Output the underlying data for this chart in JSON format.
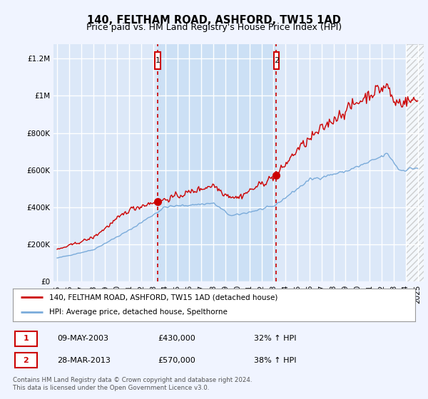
{
  "title": "140, FELTHAM ROAD, ASHFORD, TW15 1AD",
  "subtitle": "Price paid vs. HM Land Registry's House Price Index (HPI)",
  "ylabel_ticks": [
    "£0",
    "£200K",
    "£400K",
    "£600K",
    "£800K",
    "£1M",
    "£1.2M"
  ],
  "ytick_values": [
    0,
    200000,
    400000,
    600000,
    800000,
    1000000,
    1200000
  ],
  "ylim": [
    0,
    1280000
  ],
  "xlim_start": 1994.7,
  "xlim_end": 2025.5,
  "xticks": [
    1995,
    1996,
    1997,
    1998,
    1999,
    2000,
    2001,
    2002,
    2003,
    2004,
    2005,
    2006,
    2007,
    2008,
    2009,
    2010,
    2011,
    2012,
    2013,
    2014,
    2015,
    2016,
    2017,
    2018,
    2019,
    2020,
    2021,
    2022,
    2023,
    2024,
    2025
  ],
  "background_color": "#f0f4ff",
  "plot_bg_color": "#dce8f8",
  "highlight_bg_color": "#cce0f5",
  "grid_color": "#ffffff",
  "red_line_color": "#cc0000",
  "blue_line_color": "#7aabda",
  "sale1_x": 2003.36,
  "sale1_y": 430000,
  "sale2_x": 2013.24,
  "sale2_y": 570000,
  "vline_color": "#cc0000",
  "legend_label_red": "140, FELTHAM ROAD, ASHFORD, TW15 1AD (detached house)",
  "legend_label_blue": "HPI: Average price, detached house, Spelthorne",
  "table_row1": [
    "1",
    "09-MAY-2003",
    "£430,000",
    "32% ↑ HPI"
  ],
  "table_row2": [
    "2",
    "28-MAR-2013",
    "£570,000",
    "38% ↑ HPI"
  ],
  "footer": "Contains HM Land Registry data © Crown copyright and database right 2024.\nThis data is licensed under the Open Government Licence v3.0.",
  "title_fontsize": 10.5,
  "subtitle_fontsize": 9,
  "axis_fontsize": 7.5,
  "legend_fontsize": 8
}
